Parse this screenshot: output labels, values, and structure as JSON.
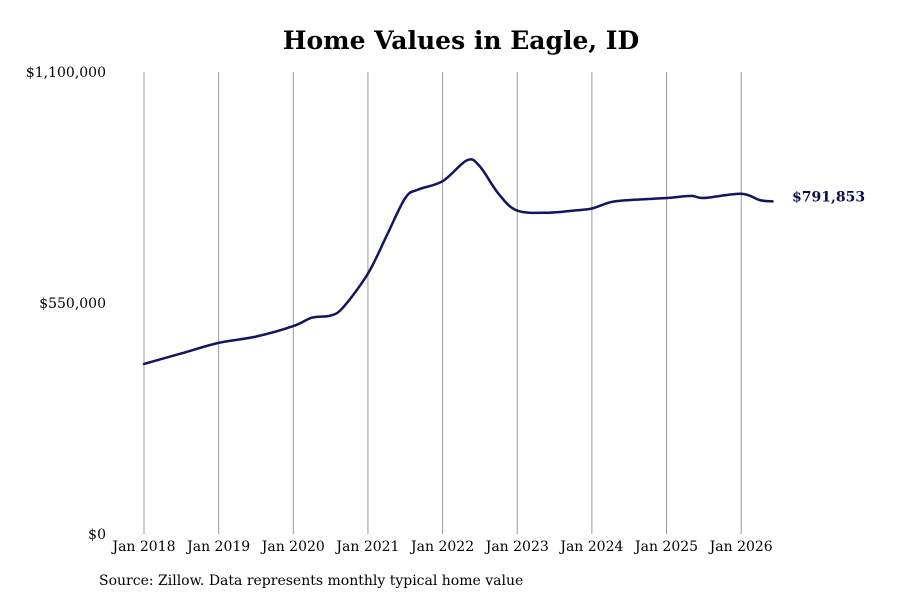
{
  "chart_data": {
    "type": "line",
    "title": "Home Values in Eagle, ID",
    "xlabel": "",
    "ylabel": "",
    "ylim": [
      0,
      1100000
    ],
    "y_ticks": [
      {
        "value": 0,
        "label": "$0"
      },
      {
        "value": 550000,
        "label": "$550,000"
      },
      {
        "value": 1100000,
        "label": "$1,100,000"
      }
    ],
    "x_ticks": [
      {
        "value": 2018.0,
        "label": "Jan 2018"
      },
      {
        "value": 2019.0,
        "label": "Jan 2019"
      },
      {
        "value": 2020.0,
        "label": "Jan 2020"
      },
      {
        "value": 2021.0,
        "label": "Jan 2021"
      },
      {
        "value": 2022.0,
        "label": "Jan 2022"
      },
      {
        "value": 2023.0,
        "label": "Jan 2023"
      },
      {
        "value": 2024.0,
        "label": "Jan 2024"
      },
      {
        "value": 2025.0,
        "label": "Jan 2025"
      },
      {
        "value": 2026.0,
        "label": "Jan 2026"
      }
    ],
    "xlim": [
      2018.0,
      2026.5
    ],
    "grid": "vertical",
    "line_color": "#14145f",
    "end_label": "$791,853",
    "series": [
      {
        "x": [
          "Jan 2018",
          "Jul 2018",
          "Jan 2019",
          "Jul 2019",
          "Jan 2020",
          "Apr 2020",
          "Jul 2020",
          "Sep 2020",
          "Jan 2021",
          "Apr 2021",
          "Jul 2021",
          "Sep 2021",
          "Jan 2022",
          "May 2022",
          "Jul 2022",
          "Oct 2022",
          "Jan 2023",
          "Jun 2023",
          "Oct 2023",
          "Jan 2024",
          "Apr 2024",
          "Jul 2024",
          "Jan 2025",
          "May 2025",
          "Jul 2025",
          "Jan 2026",
          "Apr 2026",
          "Jun 2026"
        ],
        "x_num": [
          2018.0,
          2018.5,
          2019.0,
          2019.5,
          2020.0,
          2020.25,
          2020.5,
          2020.67,
          2021.0,
          2021.25,
          2021.5,
          2021.67,
          2022.0,
          2022.33,
          2022.5,
          2022.75,
          2023.0,
          2023.42,
          2023.75,
          2024.0,
          2024.25,
          2024.5,
          2025.0,
          2025.33,
          2025.5,
          2026.0,
          2026.25,
          2026.42
        ],
        "values": [
          405000,
          430000,
          455000,
          470000,
          495000,
          515000,
          520000,
          540000,
          620000,
          710000,
          800000,
          820000,
          840000,
          890000,
          875000,
          810000,
          770000,
          765000,
          770000,
          775000,
          790000,
          795000,
          800000,
          805000,
          800000,
          810000,
          795000,
          791853
        ]
      }
    ]
  },
  "source_note": "Source: Zillow. Data represents monthly typical home value"
}
